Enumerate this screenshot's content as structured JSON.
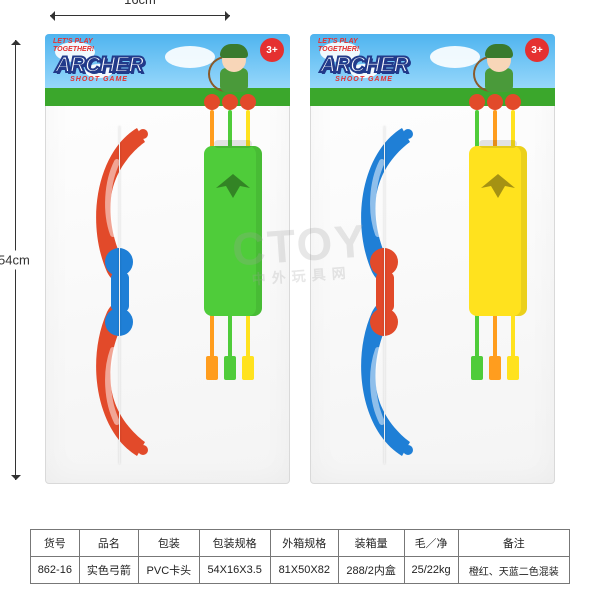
{
  "dimensions": {
    "width_label": "16cm",
    "height_label": "54cm"
  },
  "header": {
    "slogan_line1": "LET'S PLAY",
    "slogan_line2": "TOGETHER!",
    "logo_main": "ARCHER",
    "logo_sub": "SHOOT GAME",
    "age_badge": "3+"
  },
  "watermark": {
    "main": "CTOY",
    "sub": "中外玩具网"
  },
  "products": [
    {
      "bow_color_top": "#e24a2a",
      "bow_color_bottom": "#e24a2a",
      "bow_grip_color": "#1f7fd6",
      "bow_accent_color": "#1f7fd6",
      "quiver_color": "#4fcc3a",
      "arrows": [
        {
          "shaft": "#ff9d1e",
          "tip": "#e24a2a",
          "fletch": "#ff9d1e"
        },
        {
          "shaft": "#4fcc3a",
          "tip": "#e24a2a",
          "fletch": "#4fcc3a"
        },
        {
          "shaft": "#ffe21e",
          "tip": "#e24a2a",
          "fletch": "#ffe21e"
        }
      ]
    },
    {
      "bow_color_top": "#1f7fd6",
      "bow_color_bottom": "#1f7fd6",
      "bow_grip_color": "#e24a2a",
      "bow_accent_color": "#e24a2a",
      "quiver_color": "#ffe21e",
      "arrows": [
        {
          "shaft": "#4fcc3a",
          "tip": "#e24a2a",
          "fletch": "#4fcc3a"
        },
        {
          "shaft": "#ff9d1e",
          "tip": "#e24a2a",
          "fletch": "#ff9d1e"
        },
        {
          "shaft": "#ffe21e",
          "tip": "#e24a2a",
          "fletch": "#ffe21e"
        }
      ]
    }
  ],
  "table": {
    "headers": [
      "货号",
      "品名",
      "包装",
      "包装规格",
      "外箱规格",
      "装箱量",
      "毛／净",
      "备注"
    ],
    "row": [
      "862-16",
      "实色弓箭",
      "PVC卡头",
      "54X16X3.5",
      "81X50X82",
      "288/2内盒",
      "25/22kg",
      "橙红、天蓝二色混装"
    ]
  },
  "style": {
    "table_border": "#777777",
    "table_font_size": 11,
    "guide_color": "#333333",
    "header_sky_top": "#4fb4ef",
    "header_sky_bottom": "#aee3ff",
    "header_ground": "#3ba72c",
    "logo_stroke": "#223a8a",
    "slogan_color": "#e53030"
  }
}
